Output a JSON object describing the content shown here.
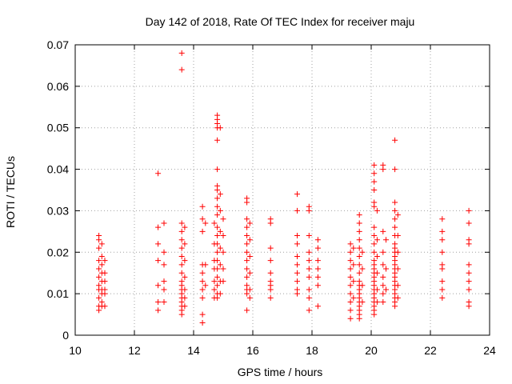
{
  "chart_data": {
    "type": "scatter",
    "title": "Day 142 of 2018, Rate Of TEC Index for receiver maju",
    "xlabel": "GPS time / hours",
    "ylabel": "ROTI / TECUs",
    "xlim": [
      10,
      24
    ],
    "ylim": [
      0,
      0.07
    ],
    "xticks": [
      "10",
      "12",
      "14",
      "16",
      "18",
      "20",
      "22",
      "24"
    ],
    "yticks": [
      "0",
      "0.01",
      "0.02",
      "0.03",
      "0.04",
      "0.05",
      "0.06",
      "0.07"
    ],
    "grid": true,
    "marker": "plus",
    "color": "#ff0000",
    "series": [
      {
        "name": "ROTI",
        "points": [
          [
            10.8,
            0.024
          ],
          [
            10.8,
            0.023
          ],
          [
            10.8,
            0.021
          ],
          [
            10.8,
            0.018
          ],
          [
            10.8,
            0.016
          ],
          [
            10.8,
            0.014
          ],
          [
            10.8,
            0.012
          ],
          [
            10.8,
            0.011
          ],
          [
            10.8,
            0.009
          ],
          [
            10.8,
            0.007
          ],
          [
            10.8,
            0.006
          ],
          [
            10.9,
            0.022
          ],
          [
            10.9,
            0.019
          ],
          [
            10.9,
            0.017
          ],
          [
            10.9,
            0.015
          ],
          [
            10.9,
            0.013
          ],
          [
            10.9,
            0.011
          ],
          [
            10.9,
            0.01
          ],
          [
            10.9,
            0.008
          ],
          [
            10.9,
            0.007
          ],
          [
            11.0,
            0.018
          ],
          [
            11.0,
            0.015
          ],
          [
            11.0,
            0.013
          ],
          [
            11.0,
            0.011
          ],
          [
            11.0,
            0.01
          ],
          [
            11.0,
            0.007
          ],
          [
            12.8,
            0.039
          ],
          [
            12.8,
            0.026
          ],
          [
            12.8,
            0.022
          ],
          [
            12.8,
            0.018
          ],
          [
            12.8,
            0.012
          ],
          [
            12.8,
            0.008
          ],
          [
            12.8,
            0.006
          ],
          [
            13.0,
            0.027
          ],
          [
            13.0,
            0.02
          ],
          [
            13.0,
            0.017
          ],
          [
            13.0,
            0.013
          ],
          [
            13.0,
            0.011
          ],
          [
            13.0,
            0.008
          ],
          [
            13.6,
            0.068
          ],
          [
            13.6,
            0.064
          ],
          [
            13.6,
            0.027
          ],
          [
            13.6,
            0.025
          ],
          [
            13.6,
            0.023
          ],
          [
            13.6,
            0.021
          ],
          [
            13.6,
            0.019
          ],
          [
            13.6,
            0.017
          ],
          [
            13.6,
            0.015
          ],
          [
            13.6,
            0.013
          ],
          [
            13.6,
            0.012
          ],
          [
            13.6,
            0.011
          ],
          [
            13.6,
            0.01
          ],
          [
            13.6,
            0.009
          ],
          [
            13.6,
            0.008
          ],
          [
            13.6,
            0.007
          ],
          [
            13.6,
            0.006
          ],
          [
            13.6,
            0.005
          ],
          [
            13.7,
            0.026
          ],
          [
            13.7,
            0.022
          ],
          [
            13.7,
            0.018
          ],
          [
            13.7,
            0.014
          ],
          [
            13.7,
            0.011
          ],
          [
            13.7,
            0.009
          ],
          [
            13.7,
            0.007
          ],
          [
            14.3,
            0.031
          ],
          [
            14.3,
            0.028
          ],
          [
            14.3,
            0.025
          ],
          [
            14.3,
            0.017
          ],
          [
            14.3,
            0.015
          ],
          [
            14.3,
            0.013
          ],
          [
            14.3,
            0.011
          ],
          [
            14.3,
            0.009
          ],
          [
            14.3,
            0.005
          ],
          [
            14.3,
            0.003
          ],
          [
            14.4,
            0.027
          ],
          [
            14.4,
            0.017
          ],
          [
            14.4,
            0.012
          ],
          [
            14.7,
            0.027
          ],
          [
            14.7,
            0.022
          ],
          [
            14.7,
            0.018
          ],
          [
            14.7,
            0.016
          ],
          [
            14.7,
            0.013
          ],
          [
            14.7,
            0.011
          ],
          [
            14.7,
            0.009
          ],
          [
            14.8,
            0.053
          ],
          [
            14.8,
            0.052
          ],
          [
            14.8,
            0.051
          ],
          [
            14.8,
            0.05
          ],
          [
            14.8,
            0.047
          ],
          [
            14.8,
            0.04
          ],
          [
            14.8,
            0.036
          ],
          [
            14.8,
            0.035
          ],
          [
            14.8,
            0.033
          ],
          [
            14.8,
            0.031
          ],
          [
            14.8,
            0.029
          ],
          [
            14.8,
            0.026
          ],
          [
            14.8,
            0.024
          ],
          [
            14.8,
            0.022
          ],
          [
            14.8,
            0.02
          ],
          [
            14.8,
            0.018
          ],
          [
            14.8,
            0.016
          ],
          [
            14.8,
            0.014
          ],
          [
            14.8,
            0.012
          ],
          [
            14.8,
            0.01
          ],
          [
            14.8,
            0.009
          ],
          [
            14.9,
            0.05
          ],
          [
            14.9,
            0.034
          ],
          [
            14.9,
            0.03
          ],
          [
            14.9,
            0.025
          ],
          [
            14.9,
            0.021
          ],
          [
            14.9,
            0.017
          ],
          [
            14.9,
            0.013
          ],
          [
            14.9,
            0.01
          ],
          [
            15.0,
            0.028
          ],
          [
            15.0,
            0.024
          ],
          [
            15.0,
            0.02
          ],
          [
            15.0,
            0.016
          ],
          [
            15.0,
            0.013
          ],
          [
            15.8,
            0.033
          ],
          [
            15.8,
            0.032
          ],
          [
            15.8,
            0.028
          ],
          [
            15.8,
            0.026
          ],
          [
            15.8,
            0.024
          ],
          [
            15.8,
            0.022
          ],
          [
            15.8,
            0.02
          ],
          [
            15.8,
            0.018
          ],
          [
            15.8,
            0.016
          ],
          [
            15.8,
            0.014
          ],
          [
            15.8,
            0.012
          ],
          [
            15.8,
            0.011
          ],
          [
            15.8,
            0.01
          ],
          [
            15.8,
            0.006
          ],
          [
            15.9,
            0.027
          ],
          [
            15.9,
            0.023
          ],
          [
            15.9,
            0.019
          ],
          [
            15.9,
            0.015
          ],
          [
            15.9,
            0.011
          ],
          [
            15.9,
            0.009
          ],
          [
            16.6,
            0.028
          ],
          [
            16.6,
            0.027
          ],
          [
            16.6,
            0.021
          ],
          [
            16.6,
            0.018
          ],
          [
            16.6,
            0.015
          ],
          [
            16.6,
            0.013
          ],
          [
            16.6,
            0.012
          ],
          [
            16.6,
            0.011
          ],
          [
            16.6,
            0.009
          ],
          [
            17.5,
            0.034
          ],
          [
            17.5,
            0.03
          ],
          [
            17.5,
            0.024
          ],
          [
            17.5,
            0.022
          ],
          [
            17.5,
            0.019
          ],
          [
            17.5,
            0.017
          ],
          [
            17.5,
            0.015
          ],
          [
            17.5,
            0.013
          ],
          [
            17.5,
            0.011
          ],
          [
            17.5,
            0.01
          ],
          [
            17.9,
            0.031
          ],
          [
            17.9,
            0.03
          ],
          [
            17.9,
            0.024
          ],
          [
            17.9,
            0.02
          ],
          [
            17.9,
            0.018
          ],
          [
            17.9,
            0.016
          ],
          [
            17.9,
            0.014
          ],
          [
            17.9,
            0.011
          ],
          [
            17.9,
            0.009
          ],
          [
            17.9,
            0.006
          ],
          [
            18.2,
            0.023
          ],
          [
            18.2,
            0.021
          ],
          [
            18.2,
            0.018
          ],
          [
            18.2,
            0.016
          ],
          [
            18.2,
            0.014
          ],
          [
            18.2,
            0.012
          ],
          [
            18.2,
            0.007
          ],
          [
            19.3,
            0.022
          ],
          [
            19.3,
            0.02
          ],
          [
            19.3,
            0.018
          ],
          [
            19.3,
            0.016
          ],
          [
            19.3,
            0.014
          ],
          [
            19.3,
            0.012
          ],
          [
            19.3,
            0.01
          ],
          [
            19.3,
            0.008
          ],
          [
            19.3,
            0.006
          ],
          [
            19.3,
            0.004
          ],
          [
            19.4,
            0.021
          ],
          [
            19.4,
            0.017
          ],
          [
            19.4,
            0.013
          ],
          [
            19.4,
            0.009
          ],
          [
            19.6,
            0.029
          ],
          [
            19.6,
            0.027
          ],
          [
            19.6,
            0.025
          ],
          [
            19.6,
            0.023
          ],
          [
            19.6,
            0.021
          ],
          [
            19.6,
            0.019
          ],
          [
            19.6,
            0.017
          ],
          [
            19.6,
            0.015
          ],
          [
            19.6,
            0.013
          ],
          [
            19.6,
            0.012
          ],
          [
            19.6,
            0.011
          ],
          [
            19.6,
            0.01
          ],
          [
            19.6,
            0.009
          ],
          [
            19.6,
            0.008
          ],
          [
            19.6,
            0.007
          ],
          [
            19.6,
            0.006
          ],
          [
            19.6,
            0.005
          ],
          [
            19.6,
            0.004
          ],
          [
            19.7,
            0.02
          ],
          [
            19.7,
            0.016
          ],
          [
            19.7,
            0.012
          ],
          [
            19.7,
            0.008
          ],
          [
            20.1,
            0.041
          ],
          [
            20.1,
            0.039
          ],
          [
            20.1,
            0.037
          ],
          [
            20.1,
            0.035
          ],
          [
            20.1,
            0.032
          ],
          [
            20.1,
            0.031
          ],
          [
            20.1,
            0.026
          ],
          [
            20.1,
            0.024
          ],
          [
            20.1,
            0.022
          ],
          [
            20.1,
            0.02
          ],
          [
            20.1,
            0.018
          ],
          [
            20.1,
            0.017
          ],
          [
            20.1,
            0.016
          ],
          [
            20.1,
            0.015
          ],
          [
            20.1,
            0.014
          ],
          [
            20.1,
            0.013
          ],
          [
            20.1,
            0.012
          ],
          [
            20.1,
            0.011
          ],
          [
            20.1,
            0.01
          ],
          [
            20.1,
            0.009
          ],
          [
            20.1,
            0.008
          ],
          [
            20.1,
            0.007
          ],
          [
            20.1,
            0.006
          ],
          [
            20.1,
            0.005
          ],
          [
            20.2,
            0.03
          ],
          [
            20.2,
            0.023
          ],
          [
            20.2,
            0.019
          ],
          [
            20.2,
            0.015
          ],
          [
            20.2,
            0.011
          ],
          [
            20.2,
            0.008
          ],
          [
            20.4,
            0.041
          ],
          [
            20.4,
            0.04
          ],
          [
            20.4,
            0.025
          ],
          [
            20.4,
            0.02
          ],
          [
            20.4,
            0.017
          ],
          [
            20.4,
            0.014
          ],
          [
            20.4,
            0.012
          ],
          [
            20.4,
            0.01
          ],
          [
            20.4,
            0.008
          ],
          [
            20.5,
            0.023
          ],
          [
            20.5,
            0.016
          ],
          [
            20.5,
            0.011
          ],
          [
            20.8,
            0.047
          ],
          [
            20.8,
            0.04
          ],
          [
            20.8,
            0.032
          ],
          [
            20.8,
            0.03
          ],
          [
            20.8,
            0.028
          ],
          [
            20.8,
            0.026
          ],
          [
            20.8,
            0.024
          ],
          [
            20.8,
            0.022
          ],
          [
            20.8,
            0.021
          ],
          [
            20.8,
            0.02
          ],
          [
            20.8,
            0.019
          ],
          [
            20.8,
            0.018
          ],
          [
            20.8,
            0.017
          ],
          [
            20.8,
            0.016
          ],
          [
            20.8,
            0.015
          ],
          [
            20.8,
            0.014
          ],
          [
            20.8,
            0.013
          ],
          [
            20.8,
            0.012
          ],
          [
            20.8,
            0.011
          ],
          [
            20.8,
            0.01
          ],
          [
            20.8,
            0.009
          ],
          [
            20.8,
            0.008
          ],
          [
            20.8,
            0.007
          ],
          [
            20.9,
            0.029
          ],
          [
            20.9,
            0.024
          ],
          [
            20.9,
            0.02
          ],
          [
            20.9,
            0.016
          ],
          [
            20.9,
            0.012
          ],
          [
            20.9,
            0.009
          ],
          [
            22.4,
            0.028
          ],
          [
            22.4,
            0.025
          ],
          [
            22.4,
            0.023
          ],
          [
            22.4,
            0.02
          ],
          [
            22.4,
            0.017
          ],
          [
            22.4,
            0.016
          ],
          [
            22.4,
            0.013
          ],
          [
            22.4,
            0.011
          ],
          [
            22.4,
            0.009
          ],
          [
            23.3,
            0.03
          ],
          [
            23.3,
            0.027
          ],
          [
            23.3,
            0.023
          ],
          [
            23.3,
            0.022
          ],
          [
            23.3,
            0.017
          ],
          [
            23.3,
            0.015
          ],
          [
            23.3,
            0.013
          ],
          [
            23.3,
            0.011
          ],
          [
            23.3,
            0.008
          ],
          [
            23.3,
            0.007
          ]
        ]
      }
    ]
  }
}
